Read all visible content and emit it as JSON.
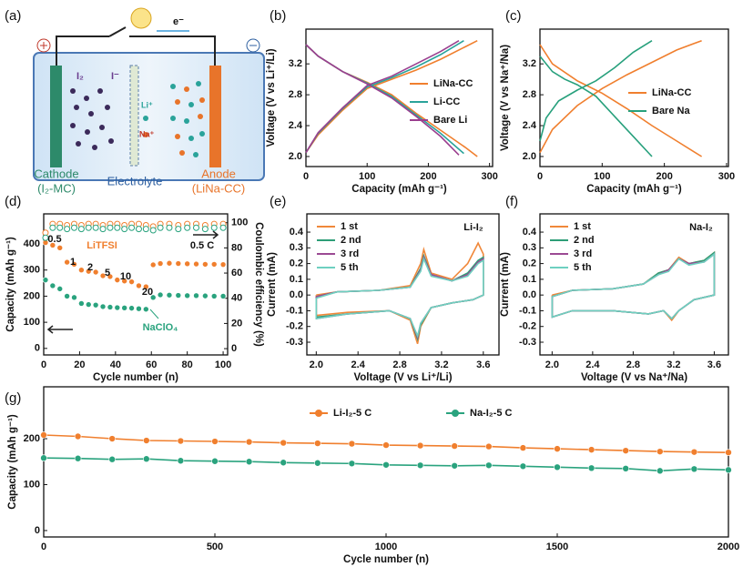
{
  "schematic": {
    "label": "(a)",
    "electron": "e⁻",
    "iodine": "I₂",
    "iodide": "I⁻",
    "li_ion": "Li⁺",
    "na_ion": "Na⁺",
    "cathode": "Cathode",
    "cathode_material": "(I₂-MC)",
    "electrolyte": "Electrolyte",
    "anode": "Anode",
    "anode_material": "(LiNa-CC)"
  },
  "chart_data": [
    {
      "type": "line",
      "label": "(b)",
      "xlabel": "Capacity (mAh g⁻¹)",
      "ylabel": "Voltage (V vs Li⁺/Li)",
      "xlim": [
        0,
        305
      ],
      "ylim": [
        1.87,
        3.65
      ],
      "xticks": [
        0,
        100,
        200,
        300
      ],
      "yticks": [
        {
          "value": 2,
          "label": "2.0"
        },
        2.4,
        2.8,
        3.2
      ],
      "legend": true,
      "series": [
        {
          "name": "LiNa-CC",
          "color": "#f07f2e",
          "x": [
            0,
            20,
            60,
            100,
            140,
            180,
            220,
            260,
            280,
            null,
            0,
            20,
            60,
            100,
            140,
            180,
            220,
            260,
            280
          ],
          "values": [
            3.45,
            3.3,
            3.1,
            2.96,
            2.8,
            2.56,
            2.34,
            2.12,
            2.0,
            null,
            2.05,
            2.28,
            2.6,
            2.88,
            3.0,
            3.12,
            3.26,
            3.42,
            3.5
          ]
        },
        {
          "name": "Li-CC",
          "color": "#2aa39a",
          "x": [
            0,
            20,
            60,
            100,
            140,
            180,
            220,
            258,
            null,
            0,
            20,
            60,
            100,
            140,
            180,
            220,
            258
          ],
          "values": [
            3.45,
            3.3,
            3.1,
            2.95,
            2.78,
            2.54,
            2.3,
            2.04,
            null,
            2.05,
            2.3,
            2.62,
            2.9,
            3.02,
            3.16,
            3.32,
            3.5
          ]
        },
        {
          "name": "Bare Li",
          "color": "#9b3f8f",
          "x": [
            0,
            20,
            60,
            100,
            140,
            180,
            220,
            250,
            null,
            0,
            20,
            60,
            100,
            140,
            180,
            220,
            250
          ],
          "values": [
            3.45,
            3.3,
            3.1,
            2.94,
            2.76,
            2.52,
            2.26,
            2.02,
            null,
            2.05,
            2.31,
            2.63,
            2.92,
            3.04,
            3.2,
            3.36,
            3.5
          ]
        }
      ]
    },
    {
      "type": "line",
      "label": "(c)",
      "xlabel": "Capacity (mAh g⁻¹)",
      "ylabel": "Voltage (V vs Na⁺/Na)",
      "xlim": [
        0,
        303
      ],
      "ylim": [
        1.87,
        3.65
      ],
      "xticks": [
        0,
        100,
        200,
        300
      ],
      "yticks": [
        {
          "value": 2,
          "label": "2.0"
        },
        2.4,
        2.8,
        3.2
      ],
      "legend": true,
      "series": [
        {
          "name": "LiNa-CC",
          "color": "#f07f2e",
          "x": [
            0,
            20,
            60,
            100,
            140,
            180,
            220,
            260,
            null,
            0,
            20,
            60,
            100,
            140,
            180,
            220,
            260
          ],
          "values": [
            3.45,
            3.2,
            2.98,
            2.82,
            2.62,
            2.4,
            2.2,
            2.0,
            null,
            2.05,
            2.35,
            2.66,
            2.88,
            3.06,
            3.22,
            3.38,
            3.5
          ]
        },
        {
          "name": "Bare Na",
          "color": "#27a07c",
          "x": [
            0,
            20,
            40,
            60,
            90,
            120,
            150,
            180,
            null,
            0,
            10,
            30,
            60,
            90,
            120,
            150,
            180
          ],
          "values": [
            3.3,
            3.1,
            3.0,
            2.93,
            2.78,
            2.52,
            2.26,
            2.0,
            null,
            2.2,
            2.5,
            2.72,
            2.86,
            2.98,
            3.15,
            3.35,
            3.5
          ]
        }
      ]
    },
    {
      "type": "scatter",
      "label": "(d)",
      "xlabel": "Cycle number (n)",
      "ylabel": "Capacity (mAh g⁻¹)",
      "y2label": "Coulombic efficiency (%)",
      "xlim": [
        0,
        102.5
      ],
      "ylim": [
        -25,
        515
      ],
      "y2lim": [
        -5,
        107
      ],
      "xticks": [
        0,
        20,
        40,
        60,
        80,
        100
      ],
      "yticks": [
        0,
        100,
        200,
        300,
        400
      ],
      "y2ticks": [
        0,
        20,
        40,
        60,
        80,
        100
      ],
      "legend": false,
      "x": [
        1,
        5,
        9,
        13,
        17,
        21,
        25,
        29,
        33,
        37,
        41,
        45,
        49,
        53,
        57,
        61,
        65,
        70,
        75,
        80,
        85,
        90,
        95,
        100
      ],
      "annotations": [
        "0.5",
        "1",
        "2",
        "5",
        "10",
        "20",
        "0.5 C"
      ],
      "series": [
        {
          "name": "LiTFSI",
          "color": "#f07f2e",
          "marker": "circle",
          "values": [
            405,
            395,
            385,
            330,
            322,
            300,
            295,
            292,
            278,
            275,
            262,
            258,
            255,
            240,
            236,
            320,
            325,
            326,
            325,
            324,
            323,
            322,
            322,
            321
          ]
        },
        {
          "name": "NaClO₄",
          "color": "#2aa37e",
          "marker": "circle",
          "values": [
            262,
            240,
            228,
            200,
            195,
            172,
            168,
            166,
            160,
            158,
            156,
            155,
            154,
            152,
            150,
            195,
            205,
            204,
            203,
            202,
            202,
            201,
            200,
            200
          ]
        },
        {
          "color": "#f07f2e",
          "marker": "open-circle",
          "axis": "y2",
          "values": [
            92,
            99,
            99,
            98,
            99,
            98,
            99,
            99,
            98,
            99,
            99,
            98,
            99,
            99,
            98,
            97,
            99,
            99,
            98,
            99,
            99,
            98,
            99,
            99
          ]
        },
        {
          "color": "#2aa37e",
          "marker": "open-circle",
          "axis": "y2",
          "values": [
            88,
            96,
            96,
            95,
            96,
            95,
            96,
            96,
            95,
            96,
            96,
            95,
            96,
            95,
            95,
            94,
            96,
            96,
            95,
            96,
            96,
            95,
            96,
            96
          ]
        }
      ]
    },
    {
      "type": "line",
      "label": "(e)",
      "xlabel": "Voltage (V vs Li⁺/Li)",
      "ylabel": "Current (mA)",
      "xlim": [
        1.91,
        3.75
      ],
      "ylim": [
        -0.381,
        0.516
      ],
      "xticks": [
        {
          "value": 2,
          "label": "2.0"
        },
        2.4,
        2.8,
        3.2,
        3.6
      ],
      "yticks": [
        0.4,
        0.3,
        0.2,
        0.1,
        {
          "value": 0,
          "label": "0.0"
        },
        -0.1,
        -0.2,
        -0.3
      ],
      "legend": true,
      "annotations": [
        "Li-I₂"
      ],
      "x": [
        2.0,
        2.2,
        2.6,
        2.9,
        3.0,
        3.03,
        3.1,
        3.3,
        3.45,
        3.55,
        3.6,
        3.6,
        3.5,
        3.3,
        3.1,
        3.0,
        2.97,
        2.9,
        2.7,
        2.3,
        2.0,
        2.0
      ],
      "series": [
        {
          "name": "1 st",
          "color": "#f0883a",
          "values": [
            0.0,
            0.02,
            0.03,
            0.06,
            0.2,
            0.29,
            0.14,
            0.1,
            0.2,
            0.33,
            0.26,
            0.0,
            -0.03,
            -0.05,
            -0.08,
            -0.2,
            -0.31,
            -0.16,
            -0.1,
            -0.11,
            -0.13,
            0.0
          ]
        },
        {
          "name": "2 nd",
          "color": "#2e9e77",
          "values": [
            -0.01,
            0.02,
            0.03,
            0.05,
            0.17,
            0.25,
            0.13,
            0.09,
            0.14,
            0.22,
            0.24,
            0.0,
            -0.03,
            -0.05,
            -0.08,
            -0.19,
            -0.28,
            -0.15,
            -0.1,
            -0.12,
            -0.14,
            -0.01
          ]
        },
        {
          "name": "3 rd",
          "color": "#9b4a93",
          "values": [
            -0.01,
            0.02,
            0.03,
            0.05,
            0.16,
            0.24,
            0.13,
            0.09,
            0.13,
            0.21,
            0.23,
            0.0,
            -0.03,
            -0.05,
            -0.08,
            -0.18,
            -0.27,
            -0.15,
            -0.1,
            -0.12,
            -0.15,
            -0.01
          ]
        },
        {
          "name": "5 th",
          "color": "#6ed0c0",
          "values": [
            -0.02,
            0.02,
            0.03,
            0.05,
            0.15,
            0.23,
            0.12,
            0.09,
            0.12,
            0.2,
            0.22,
            0.0,
            -0.03,
            -0.05,
            -0.08,
            -0.18,
            -0.26,
            -0.15,
            -0.1,
            -0.12,
            -0.15,
            -0.02
          ]
        }
      ]
    },
    {
      "type": "line",
      "label": "(f)",
      "xlabel": "Voltage (V vs Na⁺/Na)",
      "ylabel": "Current (mA)",
      "xlim": [
        1.88,
        3.74
      ],
      "ylim": [
        -0.381,
        0.516
      ],
      "xticks": [
        {
          "value": 2,
          "label": "2.0"
        },
        2.4,
        2.8,
        3.2,
        3.6
      ],
      "yticks": [
        0.4,
        0.3,
        0.2,
        0.1,
        {
          "value": 0,
          "label": "0.0"
        },
        -0.1,
        -0.2,
        -0.3
      ],
      "legend": true,
      "annotations": [
        "Na-I₂"
      ],
      "x": [
        2.0,
        2.2,
        2.6,
        2.9,
        3.05,
        3.15,
        3.25,
        3.35,
        3.5,
        3.6,
        3.6,
        3.4,
        3.25,
        3.18,
        3.1,
        2.95,
        2.6,
        2.2,
        2.0,
        2.0
      ],
      "series": [
        {
          "name": "1 st",
          "color": "#f0883a",
          "values": [
            0.0,
            0.03,
            0.04,
            0.07,
            0.14,
            0.16,
            0.24,
            0.2,
            0.22,
            0.27,
            0.0,
            -0.03,
            -0.1,
            -0.16,
            -0.1,
            -0.12,
            -0.1,
            -0.1,
            -0.14,
            0.0
          ]
        },
        {
          "name": "2 nd",
          "color": "#2e9e77",
          "values": [
            -0.01,
            0.03,
            0.04,
            0.07,
            0.14,
            0.16,
            0.23,
            0.2,
            0.22,
            0.27,
            0.0,
            -0.03,
            -0.1,
            -0.15,
            -0.1,
            -0.12,
            -0.1,
            -0.1,
            -0.14,
            -0.01
          ]
        },
        {
          "name": "3 rd",
          "color": "#9b4a93",
          "values": [
            -0.01,
            0.03,
            0.04,
            0.07,
            0.13,
            0.16,
            0.23,
            0.2,
            0.21,
            0.26,
            0.0,
            -0.03,
            -0.1,
            -0.15,
            -0.1,
            -0.12,
            -0.1,
            -0.1,
            -0.14,
            -0.01
          ]
        },
        {
          "name": "5 th",
          "color": "#6ed0c0",
          "values": [
            -0.01,
            0.03,
            0.04,
            0.07,
            0.13,
            0.15,
            0.23,
            0.19,
            0.21,
            0.26,
            0.0,
            -0.03,
            -0.1,
            -0.15,
            -0.1,
            -0.12,
            -0.1,
            -0.1,
            -0.14,
            -0.01
          ]
        }
      ]
    },
    {
      "type": "line",
      "label": "(g)",
      "xlabel": "Cycle number (n)",
      "ylabel": "Capacity (mAh g⁻¹)",
      "xlim": [
        0,
        2000
      ],
      "ylim": [
        -14,
        313
      ],
      "xticks": [
        0,
        500,
        1000,
        1500,
        2000
      ],
      "yticks": [
        0,
        100,
        200
      ],
      "legend": true,
      "x": [
        0,
        100,
        200,
        300,
        400,
        500,
        600,
        700,
        800,
        900,
        1000,
        1100,
        1200,
        1300,
        1400,
        1500,
        1600,
        1700,
        1800,
        1900,
        2000
      ],
      "series": [
        {
          "name": "Li-I₂-5 C",
          "color": "#f07f2e",
          "marker": "circle",
          "values": [
            208,
            205,
            200,
            196,
            195,
            194,
            193,
            191,
            190,
            189,
            186,
            185,
            184,
            183,
            180,
            178,
            176,
            174,
            172,
            171,
            170
          ]
        },
        {
          "name": "Na-I₂-5 C",
          "color": "#2aa37e",
          "marker": "circle",
          "values": [
            158,
            157,
            155,
            156,
            152,
            151,
            150,
            148,
            147,
            146,
            143,
            142,
            141,
            142,
            140,
            138,
            136,
            135,
            130,
            134,
            132
          ]
        }
      ]
    }
  ]
}
